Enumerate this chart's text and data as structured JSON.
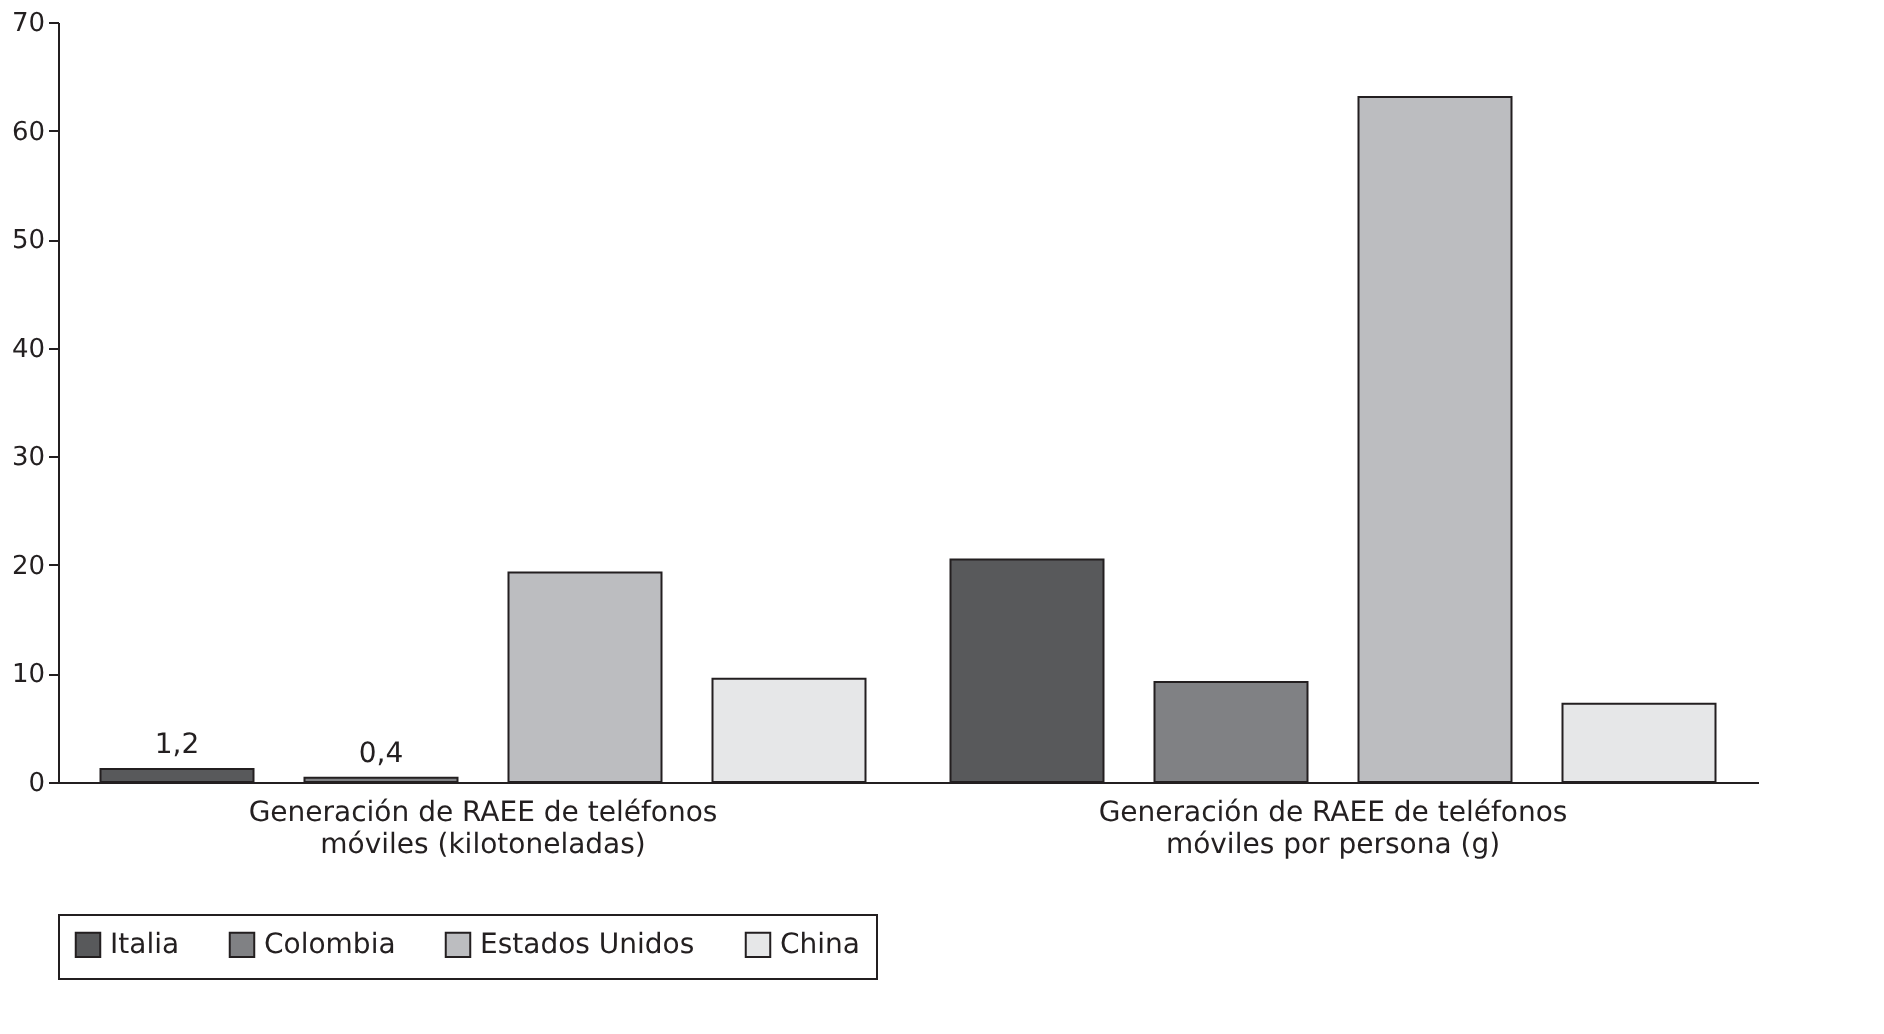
{
  "chart_data": {
    "type": "bar",
    "categories": [
      "Generación de RAEE de teléfonos móviles (kilotoneladas)",
      "Generación de RAEE de teléfonos móviles por persona (g)"
    ],
    "series": [
      {
        "name": "Italia",
        "color": "#58595b",
        "values": [
          1.2,
          20.5
        ],
        "value_labels": [
          "1,2",
          null
        ]
      },
      {
        "name": "Colombia",
        "color": "#808184",
        "values": [
          0.4,
          9.2
        ],
        "value_labels": [
          "0,4",
          null
        ]
      },
      {
        "name": "Estados Unidos",
        "color": "#bcbdc0",
        "values": [
          19.3,
          63.1
        ]
      },
      {
        "name": "China",
        "color": "#e6e7e8",
        "values": [
          9.5,
          7.2
        ]
      }
    ],
    "ylim": [
      0,
      70
    ],
    "yticks": [
      0,
      10,
      20,
      30,
      40,
      50,
      60,
      70
    ],
    "grid": false,
    "legend": "bottom"
  }
}
